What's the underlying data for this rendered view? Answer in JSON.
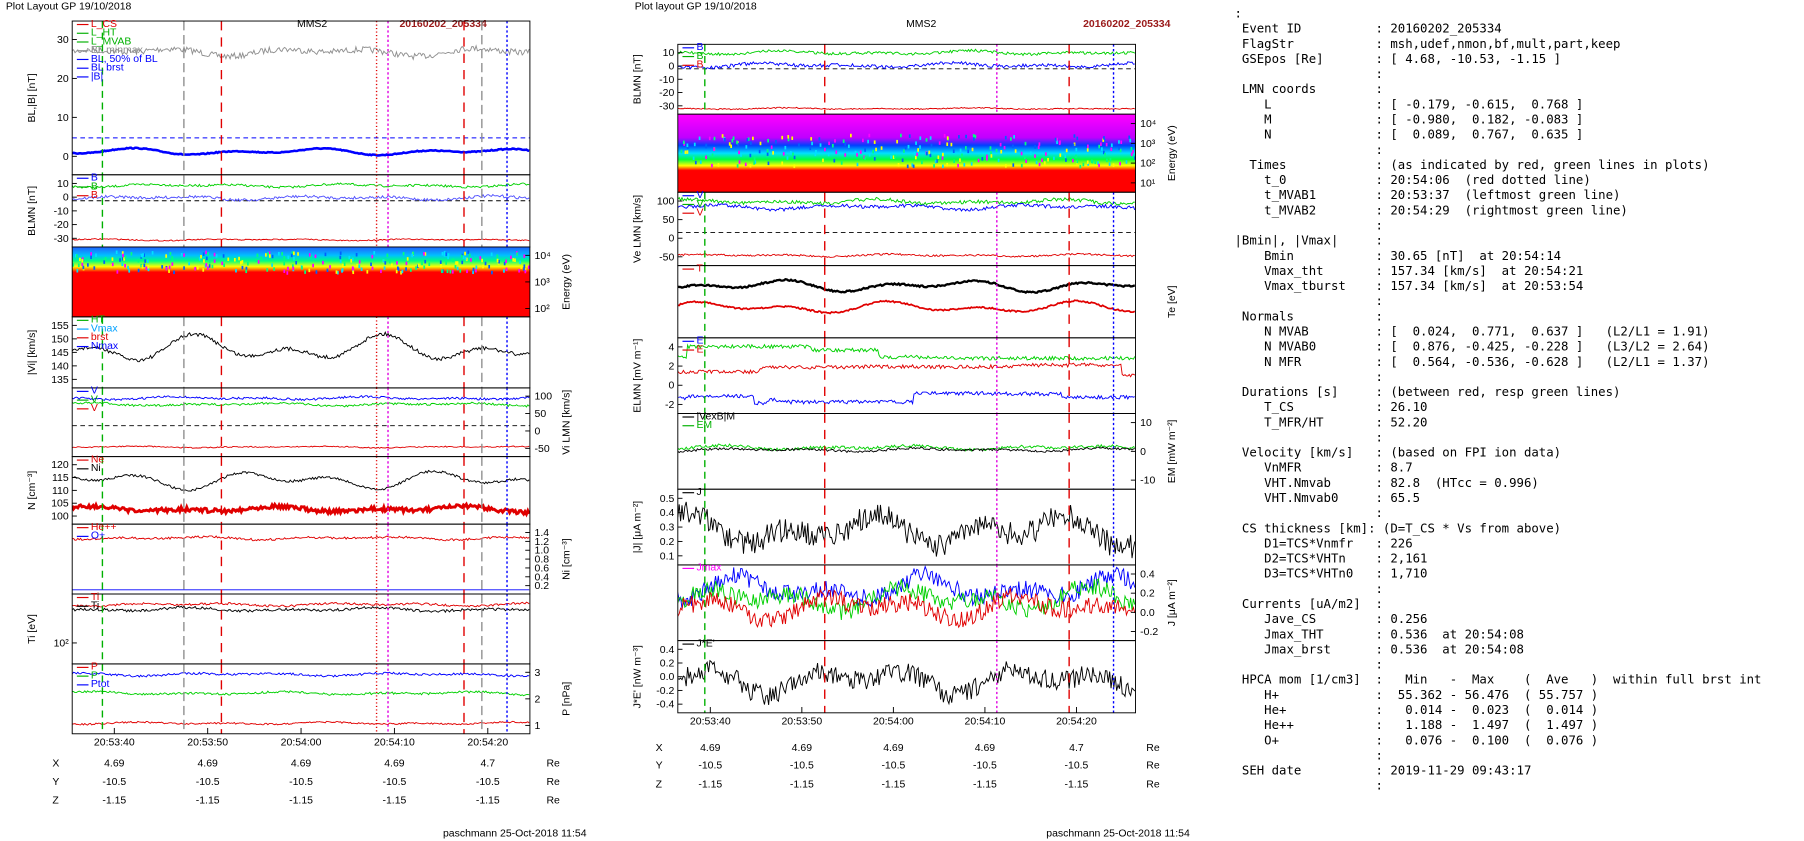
{
  "plots": [
    {
      "header": "Plot Layout GP 19/10/2018",
      "title": "MMS2",
      "event": "20160202_205334",
      "footer": "paschmann 25-Oct-2018 11:54",
      "panels": [
        {
          "ylabel": "BL,|B| [nT]",
          "side": "left",
          "ticks": [
            "30",
            "20",
            "10",
            "0"
          ],
          "legend": [
            {
              "text": "L_CS",
              "color": "#e00000"
            },
            {
              "text": "L_HT",
              "color": "#00b000"
            },
            {
              "text": "L_MVAB",
              "color": "#00b000"
            },
            {
              "text": "BL minmax",
              "color": "#909090"
            },
            {
              "text": "BL, 50% of BL",
              "color": "#0000ff"
            },
            {
              "text": "BL brst",
              "color": "#0000ff"
            },
            {
              "text": "|B|",
              "color": "#0000ff"
            }
          ]
        },
        {
          "ylabel": "BLMN [nT]",
          "side": "left",
          "ticks": [
            "10",
            "0",
            "-10",
            "-20",
            "-30"
          ],
          "legend": [
            {
              "text": "B",
              "color": "#0000ff"
            },
            {
              "text": "B",
              "color": "#00b000"
            },
            {
              "text": "B",
              "color": "#e00000"
            }
          ]
        },
        {
          "ylabel": "Energy (eV)",
          "side": "right",
          "ticks": [
            "10⁴",
            "10³",
            "10²"
          ],
          "legend": []
        },
        {
          "ylabel": "|Vi| [km/s]",
          "side": "left",
          "ticks": [
            "155",
            "150",
            "145",
            "140",
            "135"
          ],
          "legend": [
            {
              "text": "HT",
              "color": "#00b000"
            },
            {
              "text": "Vmax",
              "color": "#00a0ff"
            },
            {
              "text": "brst",
              "color": "#e00000"
            },
            {
              "text": "Nmax",
              "color": "#0000ff"
            }
          ]
        },
        {
          "ylabel": "Vi LMN [km/s]",
          "side": "right",
          "ticks": [
            "100",
            "50",
            "0",
            "-50"
          ],
          "legend": [
            {
              "text": "V",
              "color": "#0000ff"
            },
            {
              "text": "V",
              "color": "#00b000"
            },
            {
              "text": "V",
              "color": "#e00000"
            }
          ]
        },
        {
          "ylabel": "N [cm⁻³]",
          "side": "left",
          "ticks": [
            "120",
            "115",
            "110",
            "105",
            "100"
          ],
          "legend": [
            {
              "text": "Ne",
              "color": "#e00000"
            },
            {
              "text": "Ni",
              "color": "#000000"
            }
          ]
        },
        {
          "ylabel": "Ni [cm⁻³]",
          "side": "right",
          "ticks": [
            "1.4",
            "1.2",
            "1.0",
            "0.8",
            "0.6",
            "0.4",
            "0.2"
          ],
          "legend": [
            {
              "text": "He++",
              "color": "#e00000"
            },
            {
              "text": "O+",
              "color": "#0000ff"
            }
          ]
        },
        {
          "ylabel": "Ti [eV]",
          "side": "left",
          "ticks": [
            "10²"
          ],
          "legend": [
            {
              "text": "Ti",
              "color": "#e00000"
            },
            {
              "text": "Ti",
              "color": "#000000"
            }
          ]
        },
        {
          "ylabel": "P [nPa]",
          "side": "right",
          "ticks": [
            "3",
            "2",
            "1"
          ],
          "legend": [
            {
              "text": "P",
              "color": "#e00000"
            },
            {
              "text": "P",
              "color": "#00b000"
            },
            {
              "text": "Ptot",
              "color": "#0000ff"
            }
          ]
        }
      ],
      "times": [
        "20:53:40",
        "20:53:50",
        "20:54:00",
        "20:54:10",
        "20:54:20"
      ],
      "rows": [
        {
          "label": "X",
          "values": [
            4.69,
            4.69,
            4.69,
            4.69,
            4.7
          ],
          "unit": "Re"
        },
        {
          "label": "Y",
          "values": [
            -10.5,
            -10.5,
            -10.5,
            -10.5,
            -10.5
          ],
          "unit": "Re"
        },
        {
          "label": "Z",
          "values": [
            -1.15,
            -1.15,
            -1.15,
            -1.15,
            -1.15
          ],
          "unit": "Re"
        }
      ]
    },
    {
      "header": "Plot layout GP 19/10/2018",
      "title": "MMS2",
      "event": "20160202_205334",
      "footer": "paschmann 25-Oct-2018 11:54",
      "panels": [
        {
          "ylabel": "BLMN [nT]",
          "side": "left",
          "ticks": [
            "10",
            "0",
            "-10",
            "-20",
            "-30"
          ],
          "legend": [
            {
              "text": "B",
              "color": "#0000ff"
            },
            {
              "text": "B",
              "color": "#00b000"
            },
            {
              "text": "B",
              "color": "#e00000"
            }
          ]
        },
        {
          "ylabel": "Energy (eV)",
          "side": "right",
          "ticks": [
            "10⁴",
            "10³",
            "10²",
            "10¹"
          ],
          "legend": []
        },
        {
          "ylabel": "Ve LMN [km/s]",
          "side": "left",
          "ticks": [
            "100",
            "50",
            "0",
            "-50"
          ],
          "legend": [
            {
              "text": "V",
              "color": "#0000ff"
            },
            {
              "text": "V",
              "color": "#00b000"
            },
            {
              "text": "V",
              "color": "#e00000"
            }
          ]
        },
        {
          "ylabel": "Te [eV]",
          "side": "right",
          "ticks": [],
          "legend": [
            {
              "text": "T",
              "color": "#e00000"
            }
          ]
        },
        {
          "ylabel": "ELMN [mV m⁻¹]",
          "side": "left",
          "ticks": [
            "4",
            "2",
            "0",
            "-2"
          ],
          "legend": [
            {
              "text": "E",
              "color": "#0000ff"
            },
            {
              "text": "E",
              "color": "#e00000"
            }
          ]
        },
        {
          "ylabel": "EM [mW m⁻²]",
          "side": "right",
          "ticks": [
            "10",
            "0",
            "-10"
          ],
          "legend": [
            {
              "text": "|VexB|M",
              "color": "#000000"
            },
            {
              "text": "EM",
              "color": "#00b000"
            }
          ]
        },
        {
          "ylabel": "|J| [μA m⁻²]",
          "side": "left",
          "ticks": [
            "0.5",
            "0.4",
            "0.3",
            "0.2",
            "0.1"
          ],
          "legend": [
            {
              "text": "J",
              "color": "#000000"
            }
          ]
        },
        {
          "ylabel": "J [μA m⁻²]",
          "side": "right",
          "ticks": [
            "0.4",
            "0.2",
            "0.0",
            "-0.2"
          ],
          "legend": [
            {
              "text": "Jmax",
              "color": "#ff00ff"
            }
          ]
        },
        {
          "ylabel": "J*E' [nW m⁻³]",
          "side": "left",
          "ticks": [
            "0.4",
            "0.2",
            "0.0",
            "-0.2",
            "-0.4"
          ],
          "legend": [
            {
              "text": "J*E'",
              "color": "#000000"
            }
          ]
        }
      ],
      "times": [
        "20:53:40",
        "20:53:50",
        "20:54:00",
        "20:54:10",
        "20:54:20"
      ],
      "rows": [
        {
          "label": "X",
          "values": [
            4.69,
            4.69,
            4.69,
            4.69,
            4.7
          ],
          "unit": "Re"
        },
        {
          "label": "Y",
          "values": [
            -10.5,
            -10.5,
            -10.5,
            -10.5,
            -10.5
          ],
          "unit": "Re"
        },
        {
          "label": "Z",
          "values": [
            -1.15,
            -1.15,
            -1.15,
            -1.15,
            -1.15
          ],
          "unit": "Re"
        }
      ]
    }
  ],
  "listing": {
    "lines": [
      ":",
      " Event ID          : 20160202_205334",
      " FlagStr           : msh,udef,nmon,bf,mult,part,keep",
      " GSEpos [Re]       : [ 4.68, -10.53, -1.15 ]",
      "                   :",
      " LMN coords        :",
      "    L              : [ -0.179, -0.615,  0.768 ]",
      "    M              : [ -0.980,  0.182, -0.083 ]",
      "    N              : [  0.089,  0.767,  0.635 ]",
      "                   :",
      "  Times            : (as indicated by red, green lines in plots)",
      "    t_0            : 20:54:06  (red dotted line)",
      "    t_MVAB1        : 20:53:37  (leftmost green line)",
      "    t_MVAB2        : 20:54:29  (rightmost green line)",
      "                   :",
      "|Bmin|, |Vmax|     :",
      "    Bmin           : 30.65 [nT]  at 20:54:14",
      "    Vmax_tht       : 157.34 [km/s]  at 20:54:21",
      "    Vmax_tburst    : 157.34 [km/s]  at 20:53:54",
      "                   :",
      " Normals           :",
      "    N MVAB         : [  0.024,  0.771,  0.637 ]   (L2/L1 = 1.91)",
      "    N MVAB0        : [  0.876, -0.425, -0.228 ]   (L3/L2 = 2.64)",
      "    N MFR          : [  0.564, -0.536, -0.628 ]   (L2/L1 = 1.37)",
      "                   :",
      " Durations [s]     : (between red, resp green lines)",
      "    T_CS           : 26.10",
      "    T_MFR/HT       : 52.20",
      "                   :",
      " Velocity [km/s]   : (based on FPI ion data)",
      "    VnMFR          : 8.7",
      "    VHT.Nmvab      : 82.8  (HTcc = 0.996)",
      "    VHT.Nmvab0     : 65.5",
      "                   :",
      " CS thickness [km]: (D=T_CS * Vs from above)",
      "    D1=TCS*Vnmfr   : 226",
      "    D2=TCS*VHTn    : 2,161",
      "    D3=TCS*VHTn0   : 1,710",
      "                   :",
      " Currents [uA/m2]  :",
      "    Jave_CS        : 0.256",
      "    Jmax_THT       : 0.536  at 20:54:08",
      "    Jmax_brst      : 0.536  at 20:54:08",
      "                   :",
      " HPCA mom [1/cm3]  :   Min   -  Max    (  Ave   )  within full brst int",
      "    H+             :  55.362 - 56.476  ( 55.757 )",
      "    He+            :   0.014 -  0.023  (  0.014 )",
      "    He++           :   1.188 -  1.497  (  1.497 )",
      "    O+             :   0.076 -  0.100  (  0.076 )",
      "                   :",
      " SEH date          : 2019-11-29 09:43:17",
      "                   :"
    ]
  }
}
